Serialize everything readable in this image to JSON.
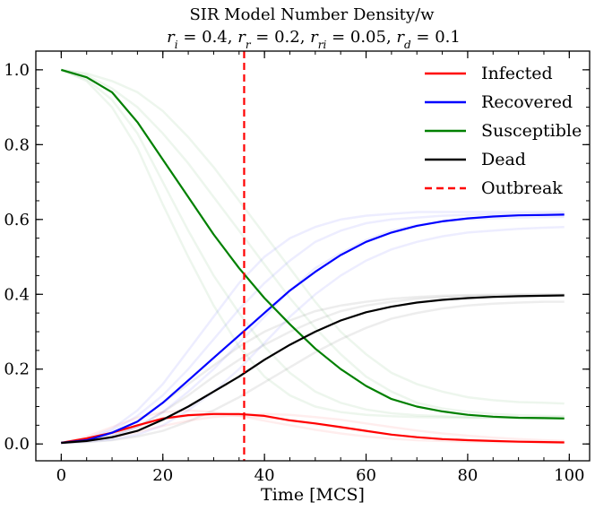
{
  "chart_data": {
    "type": "line",
    "title": "SIR Model Number Density/w",
    "subtitle": "r_i = 0.4, r_r = 0.2, r_ri = 0.05, r_d = 0.1",
    "xlabel": "Time [MCS]",
    "ylabel": "",
    "xlim": [
      -5,
      104
    ],
    "ylim": [
      -0.045,
      1.05
    ],
    "xticks": [
      0,
      20,
      40,
      60,
      80,
      100
    ],
    "yticks": [
      0.0,
      0.2,
      0.4,
      0.6,
      0.8,
      1.0
    ],
    "grid": false,
    "legend_position": "top-right",
    "x": [
      0,
      5,
      10,
      15,
      20,
      25,
      30,
      35,
      40,
      45,
      50,
      55,
      60,
      65,
      70,
      75,
      80,
      85,
      90,
      95,
      99
    ],
    "series": [
      {
        "name": "Infected",
        "color": "#ff0000",
        "values": [
          0.003,
          0.015,
          0.03,
          0.05,
          0.068,
          0.077,
          0.08,
          0.08,
          0.075,
          0.063,
          0.055,
          0.045,
          0.035,
          0.025,
          0.018,
          0.013,
          0.01,
          0.008,
          0.006,
          0.005,
          0.004
        ]
      },
      {
        "name": "Recovered",
        "color": "#0000ff",
        "values": [
          0.003,
          0.01,
          0.03,
          0.06,
          0.11,
          0.17,
          0.23,
          0.29,
          0.35,
          0.41,
          0.46,
          0.505,
          0.54,
          0.565,
          0.583,
          0.595,
          0.603,
          0.608,
          0.611,
          0.612,
          0.613
        ]
      },
      {
        "name": "Susceptible",
        "color": "#008000",
        "values": [
          1.0,
          0.98,
          0.94,
          0.86,
          0.76,
          0.66,
          0.56,
          0.47,
          0.39,
          0.32,
          0.255,
          0.2,
          0.155,
          0.12,
          0.1,
          0.087,
          0.078,
          0.073,
          0.07,
          0.069,
          0.068
        ]
      },
      {
        "name": "Dead",
        "color": "#000000",
        "values": [
          0.003,
          0.008,
          0.018,
          0.035,
          0.065,
          0.1,
          0.14,
          0.18,
          0.225,
          0.265,
          0.3,
          0.33,
          0.352,
          0.367,
          0.378,
          0.385,
          0.39,
          0.393,
          0.395,
          0.396,
          0.397
        ]
      }
    ],
    "faint_runs": [
      {
        "color": "#0000ff",
        "values": [
          0.003,
          0.015,
          0.04,
          0.09,
          0.16,
          0.25,
          0.34,
          0.43,
          0.5,
          0.55,
          0.58,
          0.6,
          0.61,
          0.615,
          0.62,
          0.62,
          0.62,
          0.62,
          0.62,
          0.62,
          0.62
        ]
      },
      {
        "color": "#0000ff",
        "values": [
          0.003,
          0.006,
          0.012,
          0.025,
          0.05,
          0.09,
          0.14,
          0.2,
          0.27,
          0.34,
          0.4,
          0.45,
          0.49,
          0.52,
          0.54,
          0.555,
          0.565,
          0.57,
          0.575,
          0.578,
          0.58
        ]
      },
      {
        "color": "#0000ff",
        "values": [
          0.003,
          0.012,
          0.035,
          0.075,
          0.13,
          0.2,
          0.28,
          0.36,
          0.43,
          0.49,
          0.54,
          0.57,
          0.59,
          0.6,
          0.605,
          0.61,
          0.612,
          0.614,
          0.615,
          0.615,
          0.615
        ]
      },
      {
        "color": "#0000ff",
        "values": [
          0.003,
          0.008,
          0.02,
          0.045,
          0.085,
          0.14,
          0.2,
          0.27,
          0.34,
          0.41,
          0.47,
          0.51,
          0.545,
          0.57,
          0.585,
          0.595,
          0.6,
          0.603,
          0.605,
          0.606,
          0.607
        ]
      },
      {
        "color": "#008000",
        "values": [
          1.0,
          0.97,
          0.9,
          0.79,
          0.64,
          0.5,
          0.37,
          0.26,
          0.18,
          0.13,
          0.1,
          0.085,
          0.078,
          0.074,
          0.072,
          0.071,
          0.07,
          0.07,
          0.07,
          0.07,
          0.07
        ]
      },
      {
        "color": "#008000",
        "values": [
          1.0,
          0.99,
          0.97,
          0.94,
          0.89,
          0.82,
          0.74,
          0.65,
          0.56,
          0.47,
          0.38,
          0.3,
          0.24,
          0.19,
          0.16,
          0.14,
          0.125,
          0.117,
          0.112,
          0.11,
          0.108
        ]
      },
      {
        "color": "#008000",
        "values": [
          1.0,
          0.975,
          0.92,
          0.83,
          0.7,
          0.57,
          0.45,
          0.35,
          0.26,
          0.19,
          0.14,
          0.11,
          0.092,
          0.082,
          0.077,
          0.074,
          0.072,
          0.071,
          0.07,
          0.07,
          0.07
        ]
      },
      {
        "color": "#008000",
        "values": [
          1.0,
          0.985,
          0.95,
          0.9,
          0.83,
          0.75,
          0.66,
          0.57,
          0.48,
          0.39,
          0.31,
          0.24,
          0.18,
          0.14,
          0.11,
          0.095,
          0.086,
          0.08,
          0.077,
          0.075,
          0.074
        ]
      },
      {
        "color": "#000000",
        "values": [
          0.003,
          0.01,
          0.03,
          0.06,
          0.11,
          0.16,
          0.21,
          0.26,
          0.3,
          0.33,
          0.355,
          0.37,
          0.38,
          0.388,
          0.393,
          0.396,
          0.398,
          0.399,
          0.4,
          0.4,
          0.4
        ]
      },
      {
        "color": "#000000",
        "values": [
          0.003,
          0.005,
          0.01,
          0.02,
          0.035,
          0.06,
          0.09,
          0.125,
          0.165,
          0.205,
          0.245,
          0.28,
          0.31,
          0.335,
          0.35,
          0.362,
          0.37,
          0.375,
          0.378,
          0.38,
          0.38
        ]
      },
      {
        "color": "#000000",
        "values": [
          0.003,
          0.008,
          0.022,
          0.045,
          0.085,
          0.13,
          0.18,
          0.225,
          0.265,
          0.3,
          0.33,
          0.355,
          0.37,
          0.38,
          0.388,
          0.392,
          0.395,
          0.396,
          0.397,
          0.398,
          0.398
        ]
      },
      {
        "color": "#ff0000",
        "values": [
          0.003,
          0.02,
          0.045,
          0.07,
          0.085,
          0.09,
          0.085,
          0.075,
          0.062,
          0.05,
          0.038,
          0.028,
          0.02,
          0.014,
          0.01,
          0.008,
          0.006,
          0.005,
          0.004,
          0.004,
          0.003
        ]
      },
      {
        "color": "#ff0000",
        "values": [
          0.003,
          0.008,
          0.018,
          0.032,
          0.048,
          0.062,
          0.072,
          0.078,
          0.08,
          0.078,
          0.072,
          0.065,
          0.055,
          0.045,
          0.036,
          0.028,
          0.022,
          0.017,
          0.013,
          0.01,
          0.008
        ]
      },
      {
        "color": "#ff0000",
        "values": [
          0.003,
          0.012,
          0.028,
          0.048,
          0.065,
          0.075,
          0.078,
          0.076,
          0.07,
          0.062,
          0.052,
          0.042,
          0.033,
          0.025,
          0.019,
          0.014,
          0.011,
          0.009,
          0.007,
          0.006,
          0.005
        ]
      }
    ],
    "vlines": [
      {
        "name": "Outbreak",
        "x": 36,
        "color": "#ff0000",
        "style": "dashed"
      }
    ]
  }
}
